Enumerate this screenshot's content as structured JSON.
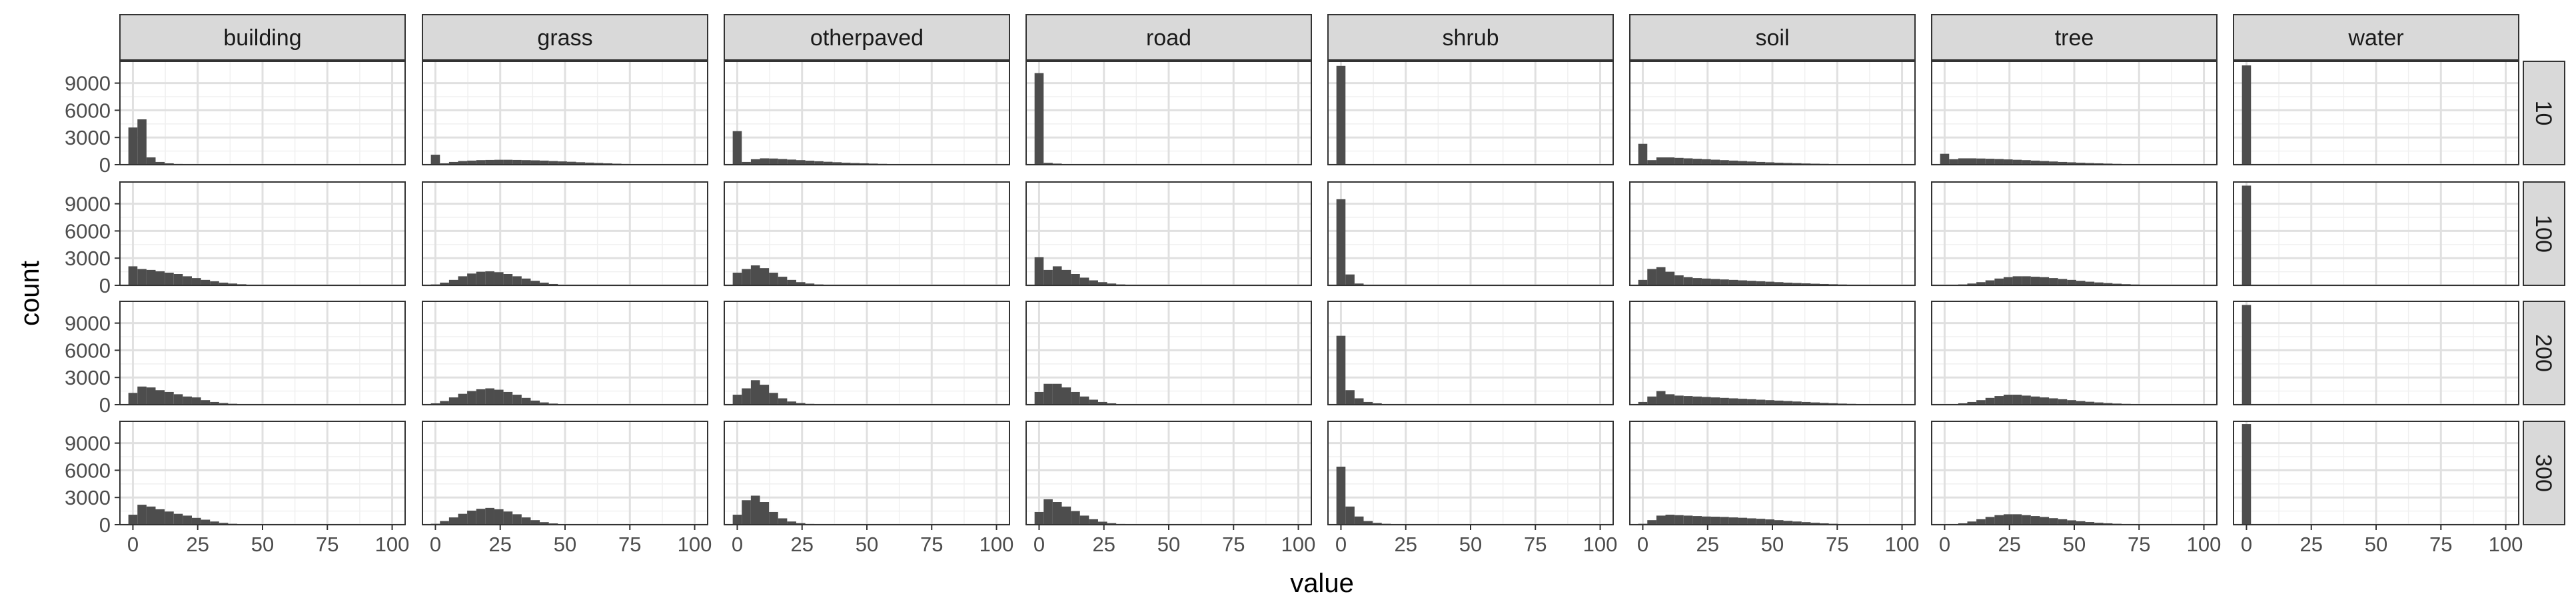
{
  "chart_data": {
    "type": "histogram",
    "title": "",
    "xlabel": "value",
    "ylabel": "count",
    "xlim": [
      -5,
      105
    ],
    "ylim": [
      0,
      11400
    ],
    "x_ticks": [
      0,
      25,
      50,
      75,
      100
    ],
    "y_ticks": [
      0,
      3000,
      6000,
      9000
    ],
    "grid": true,
    "bin_width": 3.5,
    "bin_starts": [
      -1.75,
      1.75,
      5.25,
      8.75,
      12.25,
      15.75,
      19.25,
      22.75,
      26.25,
      29.75,
      33.25,
      36.75,
      40.25,
      43.75,
      47.25,
      50.75,
      54.25,
      57.75,
      61.25,
      64.75,
      68.25,
      71.75,
      75.25,
      78.75,
      82.25,
      85.75,
      89.25,
      92.75,
      96.25,
      99.75
    ],
    "bar_color": "#4d4d4d",
    "strip_fill": "#d9d9d9",
    "column_facets": [
      "building",
      "grass",
      "otherpaved",
      "road",
      "shrub",
      "soil",
      "tree",
      "water"
    ],
    "row_facets": [
      "10",
      "100",
      "200",
      "300"
    ],
    "panels": [
      [
        {
          "col": "building",
          "row": "10",
          "counts": [
            4100,
            5000,
            800,
            300,
            150,
            80,
            40,
            20,
            10,
            5,
            0,
            0,
            0,
            0,
            0,
            0,
            0,
            0,
            0,
            0,
            0,
            0,
            0,
            0,
            0,
            0,
            0,
            0,
            0,
            0
          ]
        },
        {
          "col": "grass",
          "row": "10",
          "counts": [
            1100,
            150,
            300,
            400,
            450,
            500,
            520,
            540,
            540,
            520,
            500,
            480,
            450,
            400,
            360,
            320,
            270,
            230,
            190,
            150,
            110,
            80,
            60,
            40,
            25,
            15,
            10,
            5,
            0,
            0
          ]
        },
        {
          "col": "otherpaved",
          "row": "10",
          "counts": [
            3700,
            300,
            600,
            700,
            680,
            620,
            560,
            500,
            440,
            380,
            320,
            270,
            220,
            180,
            150,
            120,
            90,
            70,
            50,
            40,
            30,
            20,
            15,
            10,
            5,
            0,
            0,
            0,
            0,
            0
          ]
        },
        {
          "col": "road",
          "row": "10",
          "counts": [
            10100,
            200,
            120,
            60,
            30,
            15,
            5,
            0,
            0,
            0,
            0,
            0,
            0,
            0,
            0,
            0,
            0,
            0,
            0,
            0,
            0,
            0,
            0,
            0,
            0,
            0,
            0,
            0,
            0,
            0
          ]
        },
        {
          "col": "shrub",
          "row": "10",
          "counts": [
            10900,
            50,
            20,
            0,
            0,
            0,
            0,
            0,
            0,
            0,
            0,
            0,
            0,
            0,
            0,
            0,
            0,
            0,
            0,
            0,
            0,
            0,
            0,
            0,
            0,
            0,
            0,
            0,
            0,
            0
          ]
        },
        {
          "col": "soil",
          "row": "10",
          "counts": [
            2300,
            500,
            800,
            800,
            750,
            700,
            650,
            600,
            550,
            500,
            450,
            400,
            350,
            300,
            260,
            220,
            190,
            160,
            130,
            110,
            90,
            70,
            55,
            40,
            30,
            20,
            10,
            5,
            0,
            0
          ]
        },
        {
          "col": "tree",
          "row": "10",
          "counts": [
            1200,
            600,
            700,
            700,
            680,
            650,
            620,
            580,
            540,
            500,
            450,
            400,
            350,
            300,
            260,
            220,
            180,
            150,
            120,
            90,
            70,
            50,
            35,
            25,
            15,
            10,
            5,
            0,
            0,
            0
          ]
        },
        {
          "col": "water",
          "row": "10",
          "counts": [
            10950,
            10,
            0,
            0,
            0,
            0,
            0,
            0,
            0,
            0,
            0,
            0,
            0,
            0,
            0,
            0,
            0,
            0,
            0,
            0,
            0,
            0,
            0,
            0,
            0,
            0,
            0,
            0,
            0,
            0
          ]
        }
      ],
      [
        {
          "col": "building",
          "row": "100",
          "counts": [
            2100,
            1800,
            1700,
            1550,
            1400,
            1250,
            1000,
            800,
            600,
            450,
            300,
            200,
            120,
            60,
            30,
            10,
            5,
            0,
            0,
            0,
            0,
            0,
            0,
            0,
            0,
            0,
            0,
            0,
            0,
            0
          ]
        },
        {
          "col": "grass",
          "row": "100",
          "counts": [
            100,
            300,
            600,
            1000,
            1300,
            1500,
            1550,
            1450,
            1250,
            1000,
            750,
            500,
            300,
            150,
            70,
            30,
            10,
            0,
            0,
            0,
            0,
            0,
            0,
            0,
            0,
            0,
            0,
            0,
            0,
            0
          ]
        },
        {
          "col": "otherpaved",
          "row": "100",
          "counts": [
            1400,
            1800,
            2200,
            1900,
            1400,
            950,
            600,
            350,
            200,
            100,
            50,
            20,
            10,
            5,
            0,
            0,
            0,
            0,
            0,
            0,
            0,
            0,
            0,
            0,
            0,
            0,
            0,
            0,
            0,
            0
          ]
        },
        {
          "col": "road",
          "row": "100",
          "counts": [
            3100,
            1700,
            2100,
            1700,
            1250,
            850,
            550,
            350,
            200,
            100,
            50,
            20,
            10,
            5,
            0,
            0,
            0,
            0,
            0,
            0,
            0,
            0,
            0,
            0,
            0,
            0,
            0,
            0,
            0,
            0
          ]
        },
        {
          "col": "shrub",
          "row": "100",
          "counts": [
            9500,
            1200,
            200,
            50,
            20,
            10,
            0,
            0,
            0,
            0,
            0,
            0,
            0,
            0,
            0,
            0,
            0,
            0,
            0,
            0,
            0,
            0,
            0,
            0,
            0,
            0,
            0,
            0,
            0,
            0
          ]
        },
        {
          "col": "soil",
          "row": "100",
          "counts": [
            600,
            1800,
            2000,
            1500,
            1100,
            900,
            800,
            750,
            700,
            650,
            600,
            550,
            500,
            450,
            400,
            350,
            300,
            260,
            220,
            180,
            150,
            120,
            90,
            60,
            40,
            25,
            15,
            5,
            0,
            0
          ]
        },
        {
          "col": "tree",
          "row": "100",
          "counts": [
            0,
            50,
            100,
            200,
            350,
            550,
            750,
            900,
            1000,
            1000,
            950,
            900,
            800,
            700,
            600,
            500,
            400,
            320,
            250,
            180,
            130,
            90,
            60,
            40,
            25,
            15,
            5,
            0,
            0,
            0
          ]
        },
        {
          "col": "water",
          "row": "100",
          "counts": [
            11000,
            10,
            0,
            0,
            0,
            0,
            0,
            0,
            0,
            0,
            0,
            0,
            0,
            0,
            0,
            0,
            0,
            0,
            0,
            0,
            0,
            0,
            0,
            0,
            0,
            0,
            0,
            0,
            0,
            0
          ]
        }
      ],
      [
        {
          "col": "building",
          "row": "200",
          "counts": [
            1300,
            2000,
            1900,
            1600,
            1400,
            1150,
            900,
            800,
            500,
            300,
            180,
            100,
            50,
            20,
            10,
            0,
            0,
            0,
            0,
            0,
            0,
            0,
            0,
            0,
            0,
            0,
            0,
            0,
            0,
            0
          ]
        },
        {
          "col": "grass",
          "row": "200",
          "counts": [
            150,
            400,
            800,
            1200,
            1500,
            1700,
            1800,
            1650,
            1400,
            1100,
            750,
            450,
            250,
            120,
            50,
            20,
            5,
            0,
            0,
            0,
            0,
            0,
            0,
            0,
            0,
            0,
            0,
            0,
            0,
            0
          ]
        },
        {
          "col": "otherpaved",
          "row": "200",
          "counts": [
            1100,
            1800,
            2700,
            2200,
            1300,
            700,
            350,
            180,
            90,
            40,
            20,
            10,
            0,
            0,
            0,
            0,
            0,
            0,
            0,
            0,
            0,
            0,
            0,
            0,
            0,
            0,
            0,
            0,
            0,
            0
          ]
        },
        {
          "col": "road",
          "row": "200",
          "counts": [
            1400,
            2300,
            2300,
            1900,
            1400,
            900,
            550,
            300,
            150,
            70,
            30,
            10,
            5,
            0,
            0,
            0,
            0,
            0,
            0,
            0,
            0,
            0,
            0,
            0,
            0,
            0,
            0,
            0,
            0,
            0
          ]
        },
        {
          "col": "shrub",
          "row": "200",
          "counts": [
            7600,
            1600,
            700,
            300,
            150,
            60,
            20,
            10,
            0,
            0,
            0,
            0,
            0,
            0,
            0,
            0,
            0,
            0,
            0,
            0,
            0,
            0,
            0,
            0,
            0,
            0,
            0,
            0,
            0,
            0
          ]
        },
        {
          "col": "soil",
          "row": "200",
          "counts": [
            300,
            900,
            1500,
            1150,
            1000,
            950,
            900,
            850,
            800,
            750,
            700,
            650,
            600,
            550,
            500,
            450,
            400,
            350,
            300,
            250,
            200,
            160,
            120,
            90,
            60,
            40,
            25,
            10,
            5,
            0
          ]
        },
        {
          "col": "tree",
          "row": "200",
          "counts": [
            0,
            50,
            150,
            300,
            500,
            750,
            950,
            1100,
            1100,
            1000,
            900,
            800,
            700,
            600,
            500,
            400,
            320,
            250,
            180,
            130,
            90,
            60,
            40,
            25,
            15,
            5,
            0,
            0,
            0,
            0
          ]
        },
        {
          "col": "water",
          "row": "200",
          "counts": [
            11000,
            60,
            50,
            40,
            30,
            20,
            20,
            20,
            10,
            5,
            0,
            0,
            0,
            0,
            0,
            0,
            0,
            0,
            0,
            0,
            0,
            0,
            0,
            0,
            0,
            0,
            0,
            0,
            0,
            0
          ]
        }
      ],
      [
        {
          "col": "building",
          "row": "300",
          "counts": [
            1100,
            2200,
            2000,
            1700,
            1450,
            1200,
            1000,
            750,
            550,
            350,
            200,
            100,
            50,
            20,
            5,
            0,
            0,
            0,
            0,
            0,
            0,
            0,
            0,
            0,
            0,
            0,
            0,
            0,
            0,
            0
          ]
        },
        {
          "col": "grass",
          "row": "300",
          "counts": [
            100,
            400,
            800,
            1200,
            1550,
            1750,
            1850,
            1700,
            1450,
            1150,
            800,
            500,
            280,
            140,
            60,
            20,
            5,
            0,
            0,
            0,
            0,
            0,
            0,
            0,
            0,
            0,
            0,
            0,
            0,
            0
          ]
        },
        {
          "col": "otherpaved",
          "row": "300",
          "counts": [
            1100,
            2700,
            3200,
            2500,
            1400,
            700,
            350,
            170,
            80,
            35,
            15,
            5,
            0,
            0,
            0,
            0,
            0,
            0,
            0,
            0,
            0,
            0,
            0,
            0,
            0,
            0,
            0,
            0,
            0,
            0
          ]
        },
        {
          "col": "road",
          "row": "300",
          "counts": [
            1400,
            2800,
            2500,
            2000,
            1500,
            1000,
            600,
            330,
            170,
            80,
            30,
            10,
            5,
            0,
            0,
            0,
            0,
            0,
            0,
            0,
            0,
            0,
            0,
            0,
            0,
            0,
            0,
            0,
            0,
            0
          ]
        },
        {
          "col": "shrub",
          "row": "300",
          "counts": [
            6400,
            2000,
            900,
            400,
            200,
            100,
            40,
            15,
            5,
            0,
            0,
            0,
            0,
            0,
            0,
            0,
            0,
            0,
            0,
            0,
            0,
            0,
            0,
            0,
            0,
            0,
            0,
            0,
            0,
            0
          ]
        },
        {
          "col": "soil",
          "row": "300",
          "counts": [
            100,
            500,
            1000,
            1100,
            1050,
            1000,
            950,
            900,
            880,
            850,
            800,
            760,
            700,
            650,
            580,
            500,
            420,
            350,
            280,
            210,
            150,
            100,
            70,
            40,
            25,
            15,
            5,
            0,
            0,
            0
          ]
        },
        {
          "col": "tree",
          "row": "300",
          "counts": [
            0,
            50,
            150,
            350,
            600,
            850,
            1050,
            1150,
            1150,
            1050,
            950,
            850,
            720,
            600,
            480,
            380,
            290,
            210,
            150,
            100,
            70,
            45,
            25,
            15,
            5,
            0,
            0,
            0,
            0,
            0
          ]
        },
        {
          "col": "water",
          "row": "300",
          "counts": [
            11100,
            40,
            30,
            20,
            15,
            10,
            10,
            5,
            0,
            0,
            0,
            0,
            0,
            0,
            0,
            0,
            0,
            0,
            0,
            0,
            0,
            0,
            0,
            0,
            0,
            0,
            0,
            0,
            0,
            0
          ]
        }
      ]
    ]
  }
}
